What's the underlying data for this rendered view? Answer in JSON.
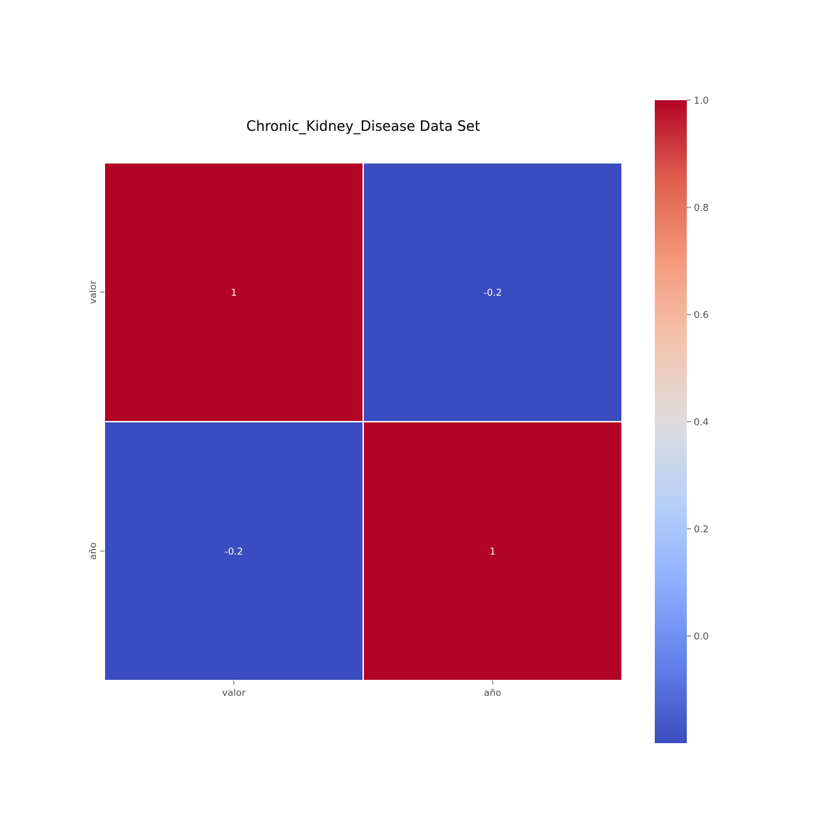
{
  "chart_data": {
    "type": "heatmap",
    "title": "Chronic_Kidney_Disease Data Set",
    "row_labels": [
      "valor",
      "año"
    ],
    "col_labels": [
      "valor",
      "año"
    ],
    "values": [
      [
        1,
        -0.2
      ],
      [
        -0.2,
        1
      ]
    ],
    "annotations": [
      [
        "1",
        "-0.2"
      ],
      [
        "-0.2",
        "1"
      ]
    ],
    "colormap": "coolwarm",
    "colorbar": {
      "range": [
        -0.2,
        1.0
      ],
      "ticks": [
        0.0,
        0.2,
        0.4,
        0.6,
        0.8,
        1.0
      ],
      "tick_labels": [
        "0.0",
        "0.2",
        "0.4",
        "0.6",
        "0.8",
        "1.0"
      ],
      "placement": "right"
    },
    "colors": {
      "high": "#b40426",
      "low": "#3b4cc0",
      "mid": "#dddcdc",
      "cell_border": "#ffffff",
      "annotation_text": "#ffffff"
    }
  }
}
